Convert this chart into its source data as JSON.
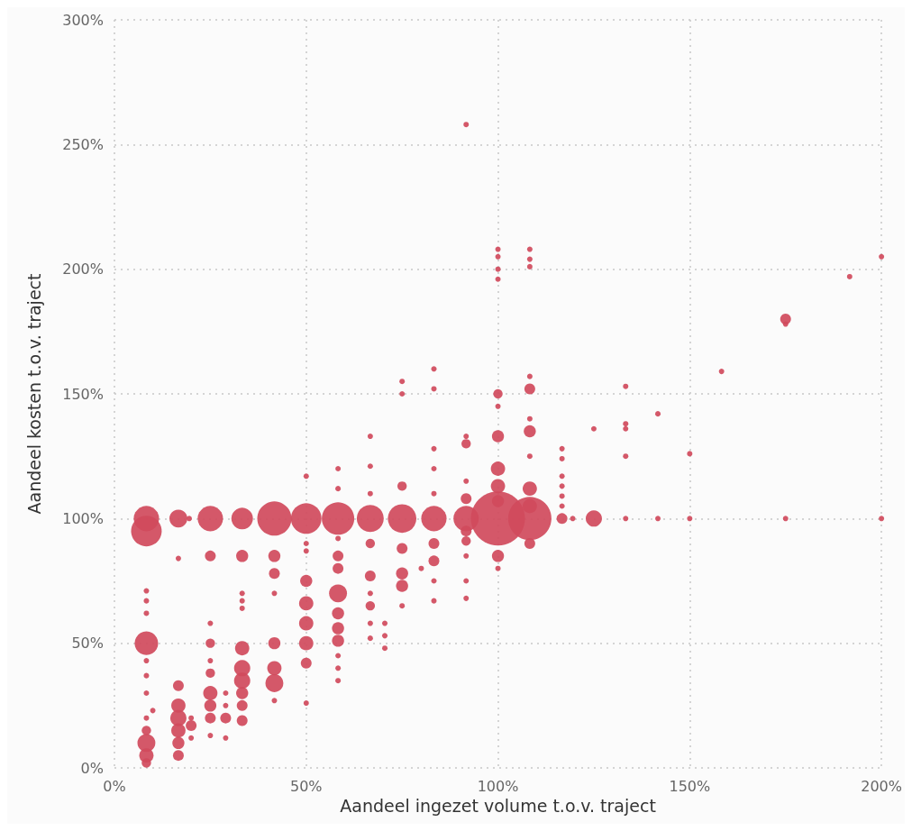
{
  "chart_data": {
    "type": "bubble",
    "xlabel": "Aandeel ingezet volume t.o.v. traject",
    "ylabel": "Aandeel kosten t.o.v. traject",
    "xlim": [
      0,
      200
    ],
    "xticks": [
      {
        "value": 0,
        "label": "0%"
      },
      {
        "value": 50,
        "label": "50%"
      },
      {
        "value": 100,
        "label": "100%"
      },
      {
        "value": 150,
        "label": "150%"
      },
      {
        "value": 200,
        "label": "200%"
      }
    ],
    "ylim": [
      0,
      300
    ],
    "yticks": [
      {
        "value": 0,
        "label": "0%"
      },
      {
        "value": 50,
        "label": "50%"
      },
      {
        "value": 100,
        "label": "100%"
      },
      {
        "value": 150,
        "label": "150%"
      },
      {
        "value": 200,
        "label": "200%"
      },
      {
        "value": 250,
        "label": "250%"
      },
      {
        "value": 300,
        "label": "300%"
      }
    ],
    "grid": true,
    "marker": "circle",
    "series": [
      {
        "color": "#d04a5c",
        "x": [
          8.33,
          8.33,
          8.33,
          8.33,
          8.33,
          8.33,
          8.33,
          8.33,
          8.33,
          8.33,
          8.33,
          8.33,
          8.33,
          8.33,
          10,
          16.67,
          16.67,
          16.67,
          16.67,
          16.67,
          16.67,
          16.67,
          16.67,
          19.5,
          20,
          20,
          20,
          25,
          25,
          25,
          25,
          25,
          25,
          25,
          25,
          25,
          25,
          29,
          29,
          29,
          29,
          33.3,
          33.3,
          33.3,
          33.3,
          33.3,
          33.3,
          33.3,
          33.3,
          33.3,
          33.3,
          33.3,
          41.7,
          41.7,
          41.7,
          41.7,
          41.7,
          41.7,
          41.7,
          41.7,
          50,
          50,
          50,
          50,
          50,
          50,
          50,
          50,
          50,
          50,
          58.3,
          58.3,
          58.3,
          58.3,
          58.3,
          58.3,
          58.3,
          58.3,
          58.3,
          58.3,
          58.3,
          58.3,
          58.3,
          66.7,
          66.7,
          66.7,
          66.7,
          66.7,
          66.7,
          66.7,
          66.7,
          66.7,
          66.7,
          70.5,
          70.5,
          70.5,
          75,
          75,
          75,
          75,
          75,
          75,
          75,
          75,
          80,
          83.3,
          83.3,
          83.3,
          83.3,
          83.3,
          83.3,
          83.3,
          83.3,
          83.3,
          83.3,
          91.7,
          91.7,
          91.7,
          91.7,
          91.7,
          91.7,
          91.7,
          91.7,
          91.7,
          91.7,
          91.7,
          100,
          100,
          100,
          100,
          100,
          100,
          100,
          100,
          100,
          100,
          100,
          100,
          100,
          108.3,
          108.3,
          108.3,
          108.3,
          108.3,
          108.3,
          108.3,
          108.3,
          108.3,
          108.3,
          108.3,
          108.3,
          116.7,
          116.7,
          116.7,
          116.7,
          116.7,
          116.7,
          116.7,
          119.5,
          125,
          125,
          133.3,
          133.3,
          133.3,
          133.3,
          133.3,
          141.7,
          141.7,
          150,
          150,
          158.3,
          175,
          175,
          175,
          191.7,
          200,
          200
        ],
        "values": [
          100,
          95,
          71,
          67,
          62,
          50,
          43,
          37,
          30,
          20,
          15,
          10,
          5,
          2,
          23,
          100,
          84,
          33,
          25,
          20,
          15,
          10,
          5,
          100,
          20,
          17,
          12,
          100,
          85,
          58,
          50,
          43,
          38,
          30,
          25,
          20,
          13,
          30,
          25,
          20,
          12,
          100,
          85,
          70,
          67,
          64,
          48,
          40,
          35,
          30,
          25,
          19,
          100,
          85,
          78,
          70,
          50,
          40,
          34,
          27,
          117,
          100,
          90,
          87,
          75,
          66,
          58,
          50,
          42,
          26,
          120,
          112,
          100,
          92,
          85,
          80,
          70,
          62,
          56,
          51,
          45,
          40,
          35,
          133,
          121,
          110,
          100,
          90,
          77,
          70,
          65,
          58,
          52,
          58,
          53,
          48,
          155,
          150,
          113,
          100,
          88,
          78,
          73,
          65,
          80,
          160,
          152,
          128,
          120,
          110,
          100,
          90,
          83,
          75,
          67,
          258,
          133,
          130,
          115,
          108,
          100,
          95,
          91,
          85,
          75,
          68,
          208,
          205,
          200,
          196,
          150,
          145,
          133,
          120,
          113,
          107,
          100,
          85,
          80,
          208,
          204,
          201,
          157,
          152,
          140,
          135,
          125,
          112,
          105,
          100,
          90,
          128,
          124,
          117,
          113,
          109,
          105,
          100,
          100,
          136,
          100,
          153,
          138,
          136,
          125,
          100,
          142,
          100,
          126,
          100,
          159,
          180,
          178,
          100,
          197,
          205,
          100
        ],
        "sizes": [
          0.22,
          0.32,
          0.01,
          0.01,
          0.01,
          0.19,
          0.01,
          0.01,
          0.01,
          0.01,
          0.03,
          0.11,
          0.07,
          0.03,
          0.01,
          0.11,
          0.01,
          0.04,
          0.07,
          0.09,
          0.07,
          0.05,
          0.04,
          0.01,
          0.01,
          0.04,
          0.01,
          0.22,
          0.04,
          0.01,
          0.03,
          0.01,
          0.03,
          0.07,
          0.05,
          0.04,
          0.01,
          0.01,
          0.01,
          0.04,
          0.01,
          0.16,
          0.05,
          0.01,
          0.01,
          0.01,
          0.07,
          0.09,
          0.09,
          0.05,
          0.04,
          0.04,
          0.4,
          0.05,
          0.04,
          0.01,
          0.05,
          0.07,
          0.11,
          0.01,
          0.01,
          0.32,
          0.01,
          0.01,
          0.05,
          0.07,
          0.07,
          0.07,
          0.04,
          0.01,
          0.01,
          0.01,
          0.36,
          0.01,
          0.04,
          0.04,
          0.11,
          0.05,
          0.05,
          0.05,
          0.01,
          0.01,
          0.01,
          0.01,
          0.01,
          0.01,
          0.25,
          0.03,
          0.04,
          0.01,
          0.03,
          0.01,
          0.01,
          0.01,
          0.01,
          0.01,
          0.01,
          0.01,
          0.03,
          0.28,
          0.04,
          0.05,
          0.05,
          0.01,
          0.01,
          0.01,
          0.01,
          0.01,
          0.01,
          0.01,
          0.22,
          0.04,
          0.04,
          0.01,
          0.01,
          0.01,
          0.01,
          0.03,
          0.01,
          0.04,
          0.22,
          0.04,
          0.03,
          0.01,
          0.01,
          0.01,
          0.01,
          0.01,
          0.01,
          0.01,
          0.03,
          0.01,
          0.05,
          0.07,
          0.07,
          0.05,
          1,
          0.05,
          0.01,
          0.01,
          0.01,
          0.01,
          0.01,
          0.04,
          0.01,
          0.05,
          0.01,
          0.07,
          0.07,
          0.64,
          0.04,
          0.01,
          0.01,
          0.01,
          0.01,
          0.01,
          0.01,
          0.04,
          0.01,
          0.01,
          0.09,
          0.01,
          0.01,
          0.01,
          0.01,
          0.01,
          0.01,
          0.01,
          0.01,
          0.01,
          0.01,
          0.04,
          0.01,
          0.01,
          0.01,
          0.01,
          0.01
        ]
      }
    ]
  }
}
